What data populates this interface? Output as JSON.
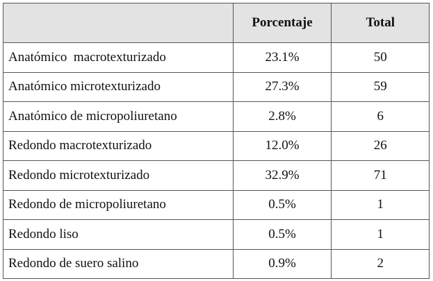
{
  "table": {
    "columns": [
      "Porcentaje",
      "Total"
    ],
    "rows": [
      [
        "Anatómico  macrotexturizado",
        "23.1%",
        "50"
      ],
      [
        "Anatómico microtexturizado",
        "27.3%",
        "59"
      ],
      [
        "Anatómico de micropoliuretano",
        "2.8%",
        "6"
      ],
      [
        "Redondo macrotexturizado",
        "12.0%",
        "26"
      ],
      [
        "Redondo microtexturizado",
        "32.9%",
        "71"
      ],
      [
        "Redondo de micropoliuretano",
        "0.5%",
        "1"
      ],
      [
        "Redondo liso",
        "0.5%",
        "1"
      ],
      [
        "Redondo de suero salino",
        "0.9%",
        "2"
      ]
    ]
  }
}
